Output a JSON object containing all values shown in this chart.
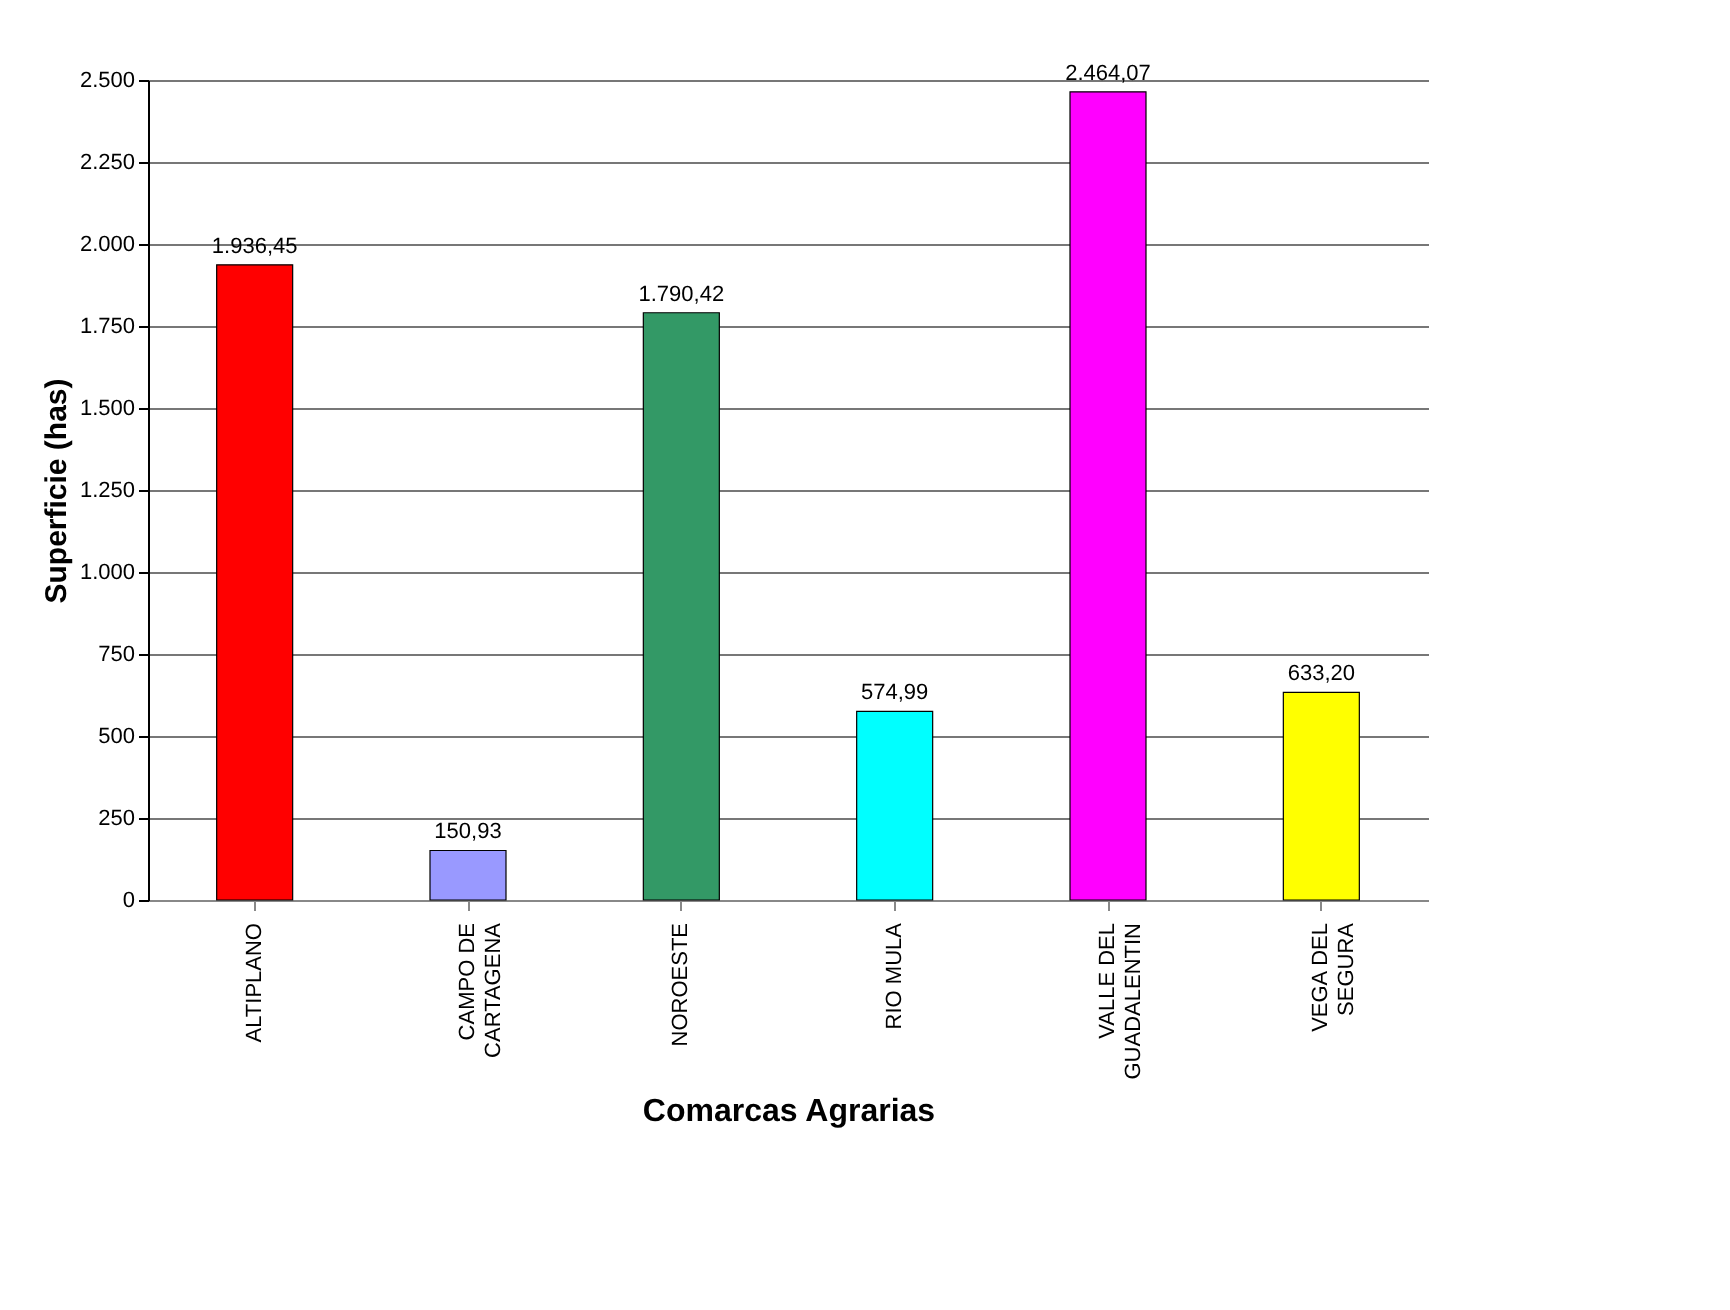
{
  "chart_data": {
    "type": "bar",
    "xlabel": "Comarcas Agrarias",
    "ylabel": "Superficie (has)",
    "categories": [
      "ALTIPLANO",
      "CAMPO DE\nCARTAGENA",
      "NOROESTE",
      "RIO MULA",
      "VALLE DEL\nGUADALENTIN",
      "VEGA DEL\nSEGURA"
    ],
    "values": [
      1936.45,
      150.93,
      1790.42,
      574.99,
      2464.07,
      633.2
    ],
    "value_labels": [
      "1.936,45",
      "150,93",
      "1.790,42",
      "574,99",
      "2.464,07",
      "633,20"
    ],
    "colors": [
      "#ff0000",
      "#9999ff",
      "#339966",
      "#00ffff",
      "#ff00ff",
      "#ffff00"
    ],
    "ylim": [
      0,
      2500
    ],
    "yticks": [
      0,
      250,
      500,
      750,
      {
        "value": 1000,
        "label": "1.000"
      },
      {
        "value": 1250,
        "label": "1.250"
      },
      {
        "value": 1500,
        "label": "1.500"
      },
      {
        "value": 1750,
        "label": "1.750"
      },
      {
        "value": 2000,
        "label": "2.000"
      },
      {
        "value": 2250,
        "label": "2.250"
      },
      {
        "value": 2500,
        "label": "2.500"
      }
    ],
    "grid": "y"
  }
}
